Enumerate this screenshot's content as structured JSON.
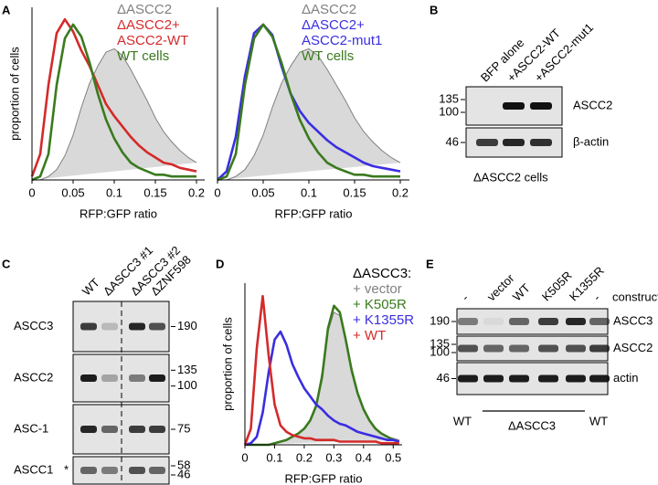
{
  "panel_labels": [
    "A",
    "B",
    "C",
    "D",
    "E"
  ],
  "chart_data": [
    {
      "type": "line",
      "xlabel": "RFP:GFP ratio",
      "ylabel": "proportion of cells",
      "x": [
        0,
        0.01,
        0.02,
        0.03,
        0.04,
        0.05,
        0.06,
        0.07,
        0.08,
        0.09,
        0.1,
        0.11,
        0.12,
        0.13,
        0.14,
        0.15,
        0.16,
        0.17,
        0.18,
        0.19,
        0.2
      ],
      "xlim": [
        0,
        0.21
      ],
      "xticks": [
        0,
        0.05,
        0.1,
        0.15,
        0.2
      ],
      "ylim": [
        0,
        1
      ],
      "legend": "upper right",
      "series": [
        {
          "name": "ΔASCC2",
          "color": "#808080",
          "fill": "#d9d9d9",
          "values": [
            0,
            0,
            0.02,
            0.06,
            0.14,
            0.26,
            0.42,
            0.56,
            0.66,
            0.74,
            0.76,
            0.72,
            0.64,
            0.55,
            0.46,
            0.36,
            0.28,
            0.22,
            0.17,
            0.13,
            0.1
          ]
        },
        {
          "name": "ΔASCC2+ ASCC2-WT",
          "color": "#d42a2a",
          "values": [
            0.02,
            0.15,
            0.55,
            0.85,
            0.93,
            0.86,
            0.75,
            0.66,
            0.55,
            0.44,
            0.37,
            0.31,
            0.25,
            0.2,
            0.16,
            0.13,
            0.1,
            0.09,
            0.07,
            0.06,
            0.05
          ]
        },
        {
          "name": "WT cells",
          "color": "#3a7a1e",
          "values": [
            0,
            0.02,
            0.15,
            0.55,
            0.82,
            0.9,
            0.83,
            0.68,
            0.5,
            0.35,
            0.24,
            0.16,
            0.1,
            0.07,
            0.05,
            0.03,
            0.03,
            0.02,
            0.02,
            0.02,
            0.02
          ]
        }
      ]
    },
    {
      "type": "line",
      "xlabel": "RFP:GFP ratio",
      "x": [
        0,
        0.01,
        0.02,
        0.03,
        0.04,
        0.05,
        0.06,
        0.07,
        0.08,
        0.09,
        0.1,
        0.11,
        0.12,
        0.13,
        0.14,
        0.15,
        0.16,
        0.17,
        0.18,
        0.19,
        0.2
      ],
      "xlim": [
        0,
        0.21
      ],
      "xticks": [
        0,
        0.05,
        0.1,
        0.15,
        0.2
      ],
      "ylim": [
        0,
        1
      ],
      "legend": "upper right",
      "series": [
        {
          "name": "ΔASCC2",
          "color": "#808080",
          "fill": "#d9d9d9",
          "values": [
            0,
            0,
            0.02,
            0.06,
            0.14,
            0.26,
            0.42,
            0.56,
            0.66,
            0.74,
            0.76,
            0.72,
            0.64,
            0.55,
            0.46,
            0.36,
            0.28,
            0.22,
            0.17,
            0.13,
            0.1
          ]
        },
        {
          "name": "ΔASCC2+ ASCC2-mut1",
          "color": "#3a2ee0",
          "values": [
            0,
            0.05,
            0.25,
            0.6,
            0.85,
            0.9,
            0.84,
            0.66,
            0.5,
            0.4,
            0.33,
            0.28,
            0.23,
            0.19,
            0.16,
            0.13,
            0.1,
            0.08,
            0.07,
            0.06,
            0.05
          ]
        },
        {
          "name": "WT cells",
          "color": "#3a7a1e",
          "values": [
            0,
            0.02,
            0.15,
            0.55,
            0.82,
            0.9,
            0.83,
            0.68,
            0.5,
            0.35,
            0.24,
            0.16,
            0.1,
            0.07,
            0.05,
            0.03,
            0.03,
            0.02,
            0.02,
            0.02,
            0.02
          ]
        }
      ]
    },
    {
      "type": "line",
      "xlabel": "RFP:GFP ratio",
      "ylabel": "proportion of cells",
      "legend_title": "ΔASCC3:",
      "x": [
        0,
        0.02,
        0.04,
        0.06,
        0.08,
        0.1,
        0.12,
        0.14,
        0.16,
        0.18,
        0.2,
        0.22,
        0.24,
        0.26,
        0.28,
        0.3,
        0.32,
        0.34,
        0.36,
        0.38,
        0.4,
        0.42,
        0.44,
        0.46,
        0.48,
        0.5,
        0.52
      ],
      "xlim": [
        0,
        0.53
      ],
      "xticks": [
        0,
        0.1,
        0.2,
        0.3,
        0.4,
        0.5
      ],
      "ylim": [
        0,
        1
      ],
      "legend": "upper right",
      "series": [
        {
          "name": "+ vector",
          "color": "#808080",
          "fill": "#d9d9d9",
          "values": [
            0,
            0,
            0,
            0,
            0,
            0.01,
            0.02,
            0.03,
            0.05,
            0.07,
            0.1,
            0.15,
            0.25,
            0.45,
            0.7,
            0.82,
            0.8,
            0.66,
            0.48,
            0.33,
            0.22,
            0.15,
            0.1,
            0.07,
            0.05,
            0.04,
            0.03
          ]
        },
        {
          "name": "+ K505R",
          "color": "#3a7a1e",
          "values": [
            0,
            0,
            0,
            0,
            0,
            0.01,
            0.02,
            0.03,
            0.05,
            0.07,
            0.1,
            0.15,
            0.24,
            0.42,
            0.72,
            0.86,
            0.82,
            0.65,
            0.46,
            0.32,
            0.22,
            0.15,
            0.1,
            0.07,
            0.05,
            0.03,
            0.02
          ]
        },
        {
          "name": "+ K1355R",
          "color": "#3a2ee0",
          "values": [
            0,
            0.01,
            0.05,
            0.2,
            0.45,
            0.65,
            0.7,
            0.62,
            0.5,
            0.42,
            0.35,
            0.3,
            0.25,
            0.22,
            0.18,
            0.15,
            0.13,
            0.12,
            0.1,
            0.08,
            0.07,
            0.06,
            0.05,
            0.04,
            0.03,
            0.03,
            0.02
          ]
        },
        {
          "name": "+ WT",
          "color": "#d42a2a",
          "values": [
            0,
            0.1,
            0.6,
            0.92,
            0.55,
            0.25,
            0.12,
            0.08,
            0.06,
            0.05,
            0.04,
            0.04,
            0.03,
            0.03,
            0.03,
            0.03,
            0.02,
            0.02,
            0.02,
            0.02,
            0.02,
            0.02,
            0.02,
            0.01,
            0.01,
            0.01,
            0.01
          ]
        }
      ]
    }
  ],
  "blots": {
    "B": {
      "lanes": [
        "BFP alone",
        "+ASCC2-WT",
        "+ASCC2-mut1"
      ],
      "rows": [
        {
          "label": "ASCC2",
          "markers": [
            135,
            100
          ]
        },
        {
          "label": "β-actin",
          "markers": [
            46
          ]
        }
      ],
      "caption": "ΔASCC2 cells"
    },
    "C": {
      "lanes": [
        "WT",
        "ΔASCC3 #1",
        "ΔASCC3 #2",
        "ΔZNF598"
      ],
      "rows": [
        {
          "label": "ASCC3",
          "markers": [
            190
          ]
        },
        {
          "label": "ASCC2",
          "markers": [
            135,
            100
          ]
        },
        {
          "label": "ASC-1",
          "markers": [
            75
          ]
        },
        {
          "label": "ASCC1",
          "markers": [
            58,
            46
          ]
        }
      ],
      "annotation": "*"
    },
    "E": {
      "lane_header": "construct",
      "lanes": [
        "-",
        "vector",
        "WT",
        "K505R",
        "K1355R",
        "-"
      ],
      "rows": [
        {
          "label": "ASCC3",
          "markers": [
            190
          ]
        },
        {
          "label": "ASCC2",
          "markers": [
            135,
            100
          ]
        },
        {
          "label": "actin",
          "markers": [
            46
          ]
        }
      ],
      "genotypes": [
        "WT",
        "ΔASCC3",
        "WT"
      ]
    }
  }
}
